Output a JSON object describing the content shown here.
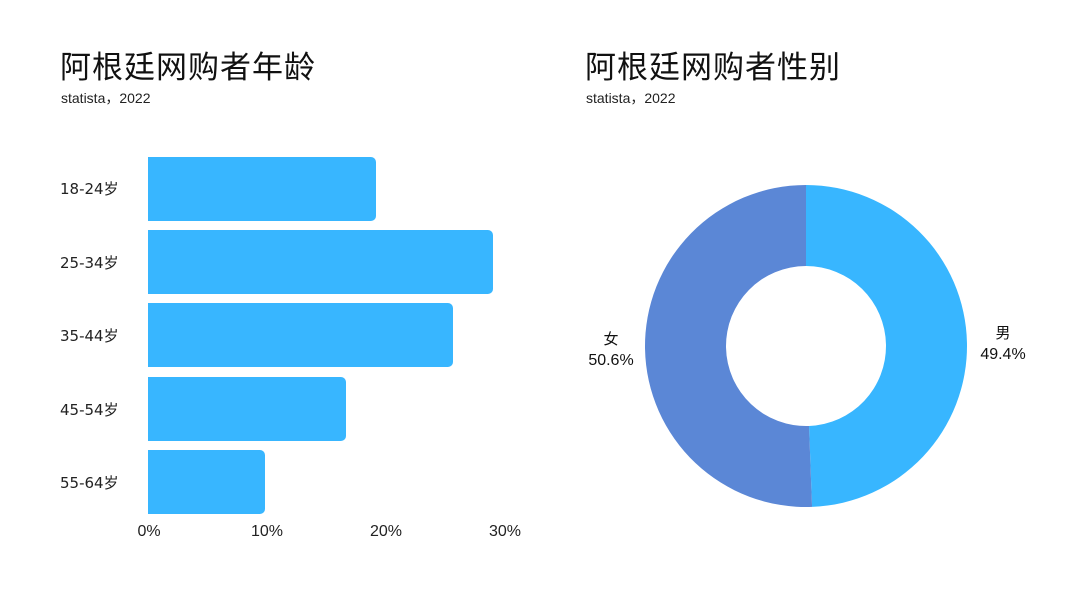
{
  "left_panel": {
    "title": "阿根廷网购者年龄",
    "subtitle": "statista，2022"
  },
  "right_panel": {
    "title": "阿根廷网购者性别",
    "subtitle": "statista，2022"
  },
  "colors": {
    "bar": "#38b6ff",
    "male": "#38b6ff",
    "female": "#5b87d6"
  },
  "chart_data": [
    {
      "type": "bar",
      "orientation": "horizontal",
      "title": "阿根廷网购者年龄",
      "subtitle": "statista，2022",
      "categories": [
        "18-24岁",
        "25-34岁",
        "35-44岁",
        "45-54岁",
        "55-64岁"
      ],
      "values": [
        19.2,
        29.1,
        25.7,
        16.7,
        9.9
      ],
      "unit": "%",
      "xticks": [
        "0%",
        "10%",
        "20%",
        "30%"
      ],
      "xlim": [
        0,
        30
      ],
      "grid": false,
      "xlabel": "",
      "ylabel": ""
    },
    {
      "type": "pie",
      "variant": "donut",
      "title": "阿根廷网购者性别",
      "subtitle": "statista，2022",
      "categories": [
        "男",
        "女"
      ],
      "values": [
        49.4,
        50.6
      ],
      "labels": [
        "49.4%",
        "50.6%"
      ],
      "unit": "%"
    }
  ]
}
